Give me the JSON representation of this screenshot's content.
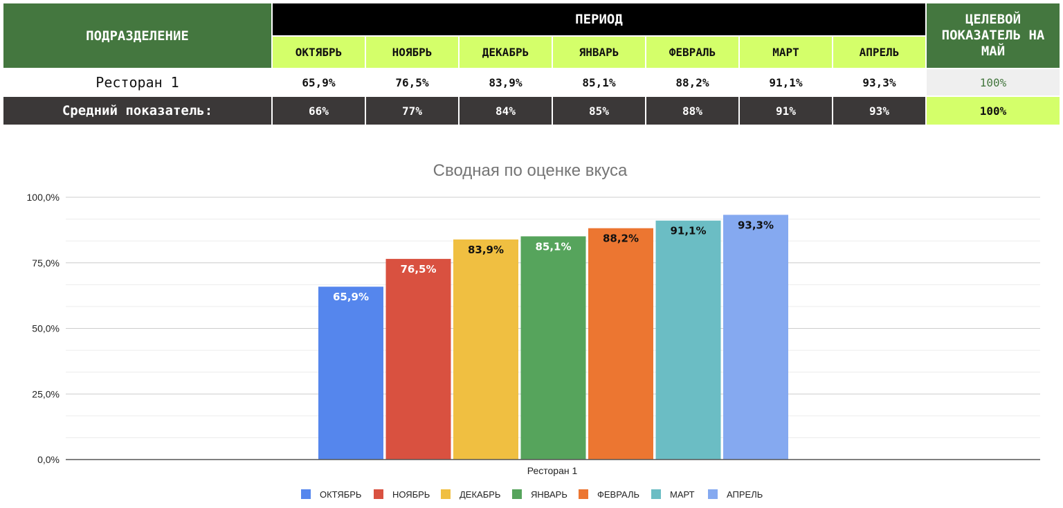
{
  "table": {
    "header_unit": "ПОДРАЗДЕЛЕНИЕ",
    "header_period": "ПЕРИОД",
    "header_target": "ЦЕЛЕВОЙ ПОКАЗАТЕЛЬ НА МАЙ",
    "months": [
      "ОКТЯБРЬ",
      "НОЯБРЬ",
      "ДЕКАБРЬ",
      "ЯНВАРЬ",
      "ФЕВРАЛЬ",
      "МАРТ",
      "АПРЕЛЬ"
    ],
    "row": {
      "name": "Ресторан 1",
      "values": [
        "65,9%",
        "76,5%",
        "83,9%",
        "85,1%",
        "88,2%",
        "91,1%",
        "93,3%"
      ],
      "target": "100%"
    },
    "avg": {
      "label": "Средний показатель:",
      "values": [
        "66%",
        "77%",
        "84%",
        "85%",
        "88%",
        "91%",
        "93%"
      ],
      "target": "100%"
    }
  },
  "chart_data": {
    "type": "bar",
    "title": "Сводная по оценке вкуса",
    "categories": [
      "Ресторан 1"
    ],
    "series": [
      {
        "name": "ОКТЯБРЬ",
        "values": [
          65.9
        ],
        "label": "65,9%",
        "color": "#5586ed"
      },
      {
        "name": "НОЯБРЬ",
        "values": [
          76.5
        ],
        "label": "76,5%",
        "color": "#d95140"
      },
      {
        "name": "ДЕКАБРЬ",
        "values": [
          83.9
        ],
        "label": "83,9%",
        "color": "#f0bf41"
      },
      {
        "name": "ЯНВАРЬ",
        "values": [
          85.1
        ],
        "label": "85,1%",
        "color": "#56a45c"
      },
      {
        "name": "ФЕВРАЛЬ",
        "values": [
          88.2
        ],
        "label": "88,2%",
        "color": "#ec7631"
      },
      {
        "name": "МАРТ",
        "values": [
          91.1
        ],
        "label": "91,1%",
        "color": "#6bbdc4"
      },
      {
        "name": "АПРЕЛЬ",
        "values": [
          93.3
        ],
        "label": "93,3%",
        "color": "#85a9f0"
      }
    ],
    "label_colors": [
      "#ffffff",
      "#ffffff",
      "#111111",
      "#ffffff",
      "#111111",
      "#111111",
      "#111111"
    ],
    "ylim": [
      0,
      100
    ],
    "yticks": [
      "0,0%",
      "25,0%",
      "50,0%",
      "75,0%",
      "100,0%"
    ],
    "grid": true,
    "legend": "bottom"
  }
}
